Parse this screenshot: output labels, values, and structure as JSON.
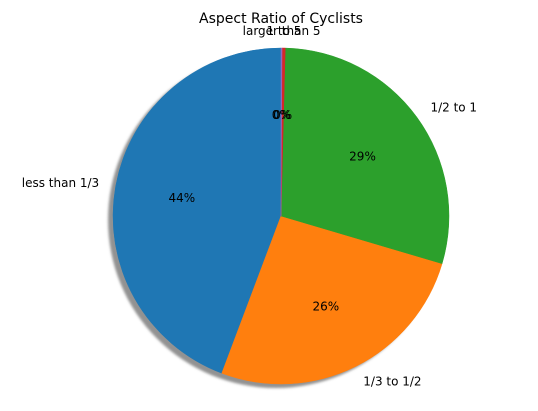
{
  "chart_data": {
    "type": "pie",
    "title": "Aspect Ratio of Cyclists",
    "categories": [
      "less than 1/3",
      "1/3 to 1/2",
      "1/2 to 1",
      "1 to 5",
      "larger than 5"
    ],
    "values": [
      44,
      26,
      29,
      0.3,
      0.1
    ],
    "percent_labels": [
      "44%",
      "26%",
      "29%",
      "0%",
      "0%"
    ],
    "colors": [
      "#1f77b4",
      "#ff7f0e",
      "#2ca02c",
      "#d62728",
      "#9467bd"
    ],
    "start_angle_deg": 90,
    "direction": "counterclockwise",
    "shadow": true
  }
}
